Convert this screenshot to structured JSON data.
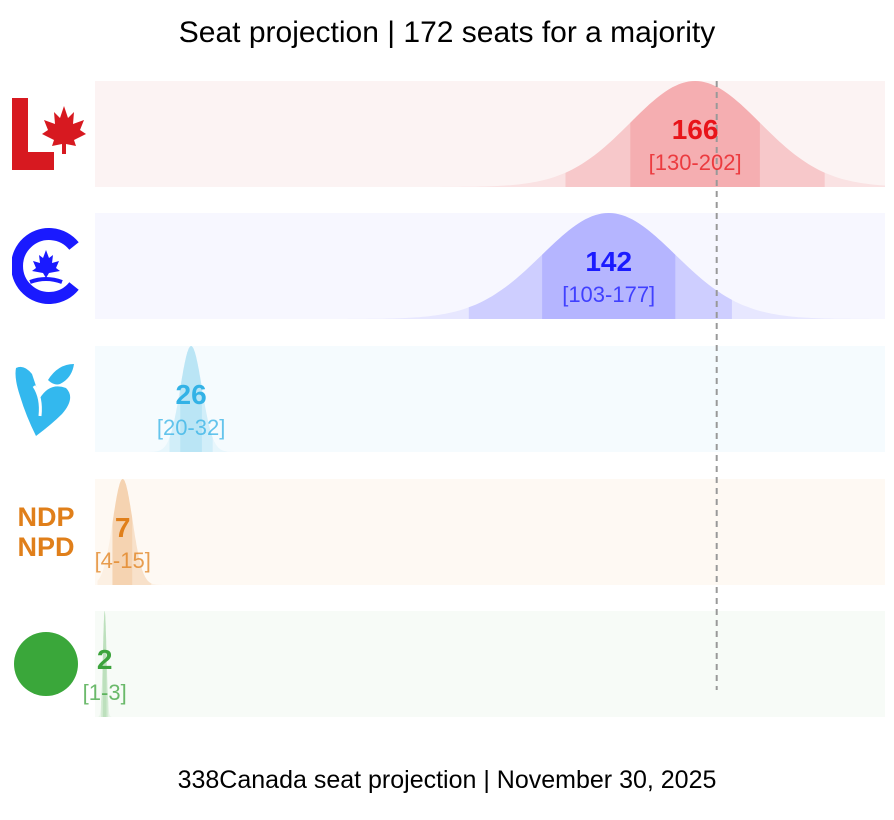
{
  "title": "Seat projection | 172 seats for a majority",
  "footer": "338Canada seat projection | November 30, 2025",
  "chart_data": {
    "type": "area",
    "majority_line": 172,
    "xlim": [
      0,
      230
    ],
    "grid": false,
    "series": [
      {
        "party": "Liberal",
        "logo_icon": "liberal-maple-leaf-icon",
        "projected": 166,
        "low": 130,
        "high": 202,
        "range_label": "[130-202]",
        "color": "#e8141a",
        "band_color": "#f7dede"
      },
      {
        "party": "Conservative",
        "logo_icon": "conservative-c-maple-icon",
        "projected": 142,
        "low": 103,
        "high": 177,
        "range_label": "[103-177]",
        "color": "#1a1aff",
        "band_color": "#e9e9ff"
      },
      {
        "party": "Bloc Québécois",
        "logo_icon": "bloc-fleur-icon",
        "projected": 26,
        "low": 20,
        "high": 32,
        "range_label": "[20-32]",
        "color": "#33b2e6",
        "band_color": "#e2f3fb"
      },
      {
        "party": "NDP",
        "logo_icon": "ndp-wordmark-icon",
        "logo_text": [
          "NDP",
          "NPD"
        ],
        "projected": 7,
        "low": 4,
        "high": 15,
        "range_label": "[4-15]",
        "color": "#e07f1a",
        "band_color": "#fbeedd"
      },
      {
        "party": "Green",
        "logo_icon": "green-circle-icon",
        "projected": 2,
        "low": 1,
        "high": 3,
        "range_label": "[1-3]",
        "color": "#3ba33b",
        "band_color": "#e7f3e7"
      }
    ]
  }
}
